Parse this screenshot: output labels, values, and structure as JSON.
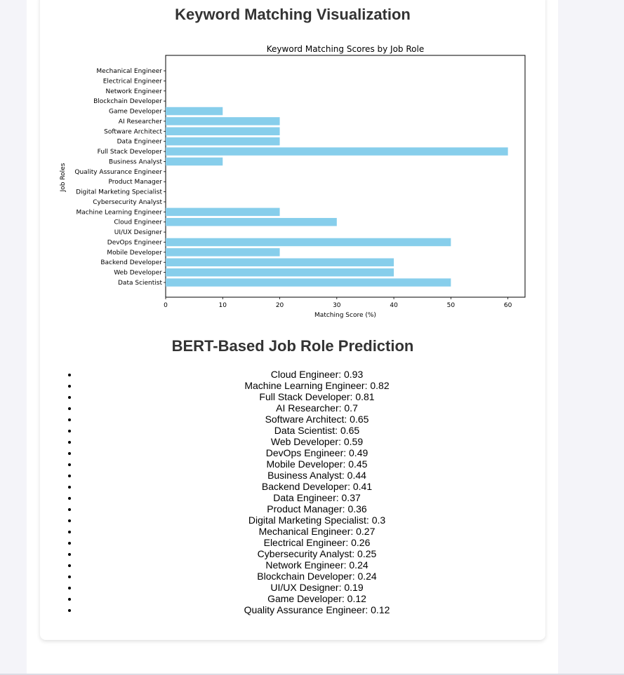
{
  "keyword_section": {
    "heading": "Keyword Matching Visualization"
  },
  "bert_section": {
    "heading": "BERT-Based Job Role Prediction"
  },
  "chart_data": {
    "type": "bar",
    "orientation": "horizontal",
    "title": "Keyword Matching Scores by Job Role",
    "xlabel": "Matching Score (%)",
    "ylabel": "Job Roles",
    "xlim": [
      0,
      63
    ],
    "xticks": [
      0,
      10,
      20,
      30,
      40,
      50,
      60
    ],
    "bar_color": "#87ceeb",
    "grid": false,
    "categories": [
      "Data Scientist",
      "Web Developer",
      "Backend Developer",
      "Mobile Developer",
      "DevOps Engineer",
      "UI/UX Designer",
      "Cloud Engineer",
      "Machine Learning Engineer",
      "Cybersecurity Analyst",
      "Digital Marketing Specialist",
      "Product Manager",
      "Quality Assurance Engineer",
      "Business Analyst",
      "Full Stack Developer",
      "Data Engineer",
      "Software Architect",
      "AI Researcher",
      "Game Developer",
      "Blockchain Developer",
      "Network Engineer",
      "Electrical Engineer",
      "Mechanical Engineer"
    ],
    "values": [
      50,
      40,
      40,
      20,
      50,
      0,
      30,
      20,
      0,
      0,
      0,
      0,
      10,
      60,
      20,
      20,
      20,
      10,
      0,
      0,
      0,
      0
    ]
  },
  "predictions": [
    "Cloud Engineer: 0.93",
    "Machine Learning Engineer: 0.82",
    "Full Stack Developer: 0.81",
    "AI Researcher: 0.7",
    "Software Architect: 0.65",
    "Data Scientist: 0.65",
    "Web Developer: 0.59",
    "DevOps Engineer: 0.49",
    "Mobile Developer: 0.45",
    "Business Analyst: 0.44",
    "Backend Developer: 0.41",
    "Data Engineer: 0.37",
    "Product Manager: 0.36",
    "Digital Marketing Specialist: 0.3",
    "Mechanical Engineer: 0.27",
    "Electrical Engineer: 0.26",
    "Cybersecurity Analyst: 0.25",
    "Network Engineer: 0.24",
    "Blockchain Developer: 0.24",
    "UI/UX Designer: 0.19",
    "Game Developer: 0.12",
    "Quality Assurance Engineer: 0.12"
  ]
}
